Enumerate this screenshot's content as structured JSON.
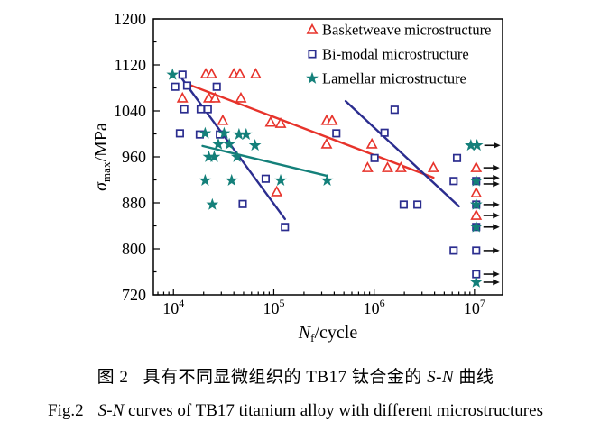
{
  "figure": {
    "caption_cn": {
      "fig_label": "图 2",
      "text_pre": "具有不同显微组织的 TB17 钛合金的 ",
      "text_italic": "S-N",
      "text_post": " 曲线"
    },
    "caption_en": {
      "fig_label": "Fig.2",
      "text_italic": "S-N",
      "text_post": " curves of TB17 titanium alloy with different microstructures"
    }
  },
  "chart_data": {
    "type": "scatter",
    "x_scale": "log",
    "grid": false,
    "legend_position": "top-right-inside",
    "xlabel": {
      "italic": "N",
      "sub": "f",
      "rest": "/cycle"
    },
    "ylabel": {
      "italic": "σ",
      "sub": "max",
      "rest": "/MPa"
    },
    "x_log_range": [
      3.8,
      7.28
    ],
    "y_range": [
      720,
      1200
    ],
    "x_major_tick_exponents": [
      4,
      5,
      6,
      7
    ],
    "y_major_ticks": [
      720,
      800,
      880,
      960,
      1040,
      1120,
      1200
    ],
    "y_minor_ticks": [
      760,
      840,
      920,
      1000,
      1080,
      1160
    ],
    "colors": {
      "basketweave": "#e7332b",
      "bimodal": "#2b2d8f",
      "lamellar": "#14807a",
      "arrow": "#111111",
      "axis": "#000000"
    },
    "series": [
      {
        "name": "Basketweave microstructure",
        "marker": "triangle",
        "color_key": "basketweave",
        "points": [
          [
            21000,
            1104,
            0
          ],
          [
            24000,
            1104,
            0
          ],
          [
            40000,
            1104,
            0
          ],
          [
            46000,
            1104,
            0
          ],
          [
            66000,
            1104,
            0
          ],
          [
            12300,
            1062,
            0
          ],
          [
            22500,
            1062,
            0
          ],
          [
            26000,
            1062,
            0
          ],
          [
            47000,
            1062,
            0
          ],
          [
            31000,
            1023,
            0
          ],
          [
            93000,
            1020,
            0
          ],
          [
            117000,
            1018,
            0
          ],
          [
            336000,
            1023,
            0
          ],
          [
            381000,
            1023,
            0
          ],
          [
            336000,
            982,
            0
          ],
          [
            950000,
            982,
            0
          ],
          [
            107000,
            899,
            0
          ],
          [
            860000,
            941,
            0
          ],
          [
            1360000,
            941,
            0
          ],
          [
            1850000,
            941,
            0
          ],
          [
            3900000,
            941,
            0
          ],
          [
            10400000,
            941,
            1
          ],
          [
            10400000,
            897,
            0
          ],
          [
            10400000,
            858,
            1
          ]
        ],
        "trend_lines": [
          [
            13600,
            1087,
            3900000,
            924
          ]
        ]
      },
      {
        "name": "Bi-modal microstructure",
        "marker": "square",
        "color_key": "bimodal",
        "points": [
          [
            12300,
            1103,
            0
          ],
          [
            10400,
            1082,
            0
          ],
          [
            13700,
            1084,
            0
          ],
          [
            27000,
            1082,
            0
          ],
          [
            12800,
            1043,
            0
          ],
          [
            18700,
            1043,
            0
          ],
          [
            22000,
            1043,
            0
          ],
          [
            11600,
            1001,
            0
          ],
          [
            18300,
            999,
            0
          ],
          [
            29000,
            999,
            0
          ],
          [
            420000,
            1001,
            0
          ],
          [
            1270000,
            1002,
            0
          ],
          [
            1600000,
            1042,
            0
          ],
          [
            1010000,
            958,
            0
          ],
          [
            6700000,
            958,
            0
          ],
          [
            83000,
            922,
            0
          ],
          [
            6200000,
            918,
            0
          ],
          [
            49000,
            878,
            0
          ],
          [
            1970000,
            877,
            0
          ],
          [
            2700000,
            877,
            0
          ],
          [
            129000,
            838,
            0
          ],
          [
            6200000,
            797,
            0
          ],
          [
            10400000,
            918,
            2
          ],
          [
            10400000,
            877,
            1
          ],
          [
            10400000,
            838,
            1
          ],
          [
            10400000,
            797,
            1
          ],
          [
            10400000,
            756,
            1
          ]
        ],
        "trend_lines": [
          [
            11600,
            1101,
            129000,
            852
          ],
          [
            520000,
            1057,
            7000000,
            874
          ]
        ]
      },
      {
        "name": "Lamellar microstructure",
        "marker": "star",
        "color_key": "lamellar",
        "points": [
          [
            9800,
            1103,
            0
          ],
          [
            20700,
            1001,
            0
          ],
          [
            32000,
            1001,
            0
          ],
          [
            45000,
            999,
            0
          ],
          [
            53000,
            999,
            0
          ],
          [
            28000,
            982,
            0
          ],
          [
            36000,
            982,
            0
          ],
          [
            65000,
            980,
            0
          ],
          [
            22500,
            960,
            0
          ],
          [
            25500,
            960,
            0
          ],
          [
            43000,
            960,
            0
          ],
          [
            20700,
            919,
            0
          ],
          [
            38000,
            919,
            0
          ],
          [
            117000,
            919,
            0
          ],
          [
            340000,
            919,
            0
          ],
          [
            24400,
            877,
            0
          ],
          [
            9200000,
            980,
            0
          ],
          [
            10600000,
            980,
            1
          ],
          [
            10400000,
            918,
            0
          ],
          [
            10400000,
            877,
            0
          ],
          [
            10400000,
            838,
            0
          ],
          [
            10400000,
            742,
            1
          ]
        ],
        "trend_lines": [
          [
            19500,
            979,
            340000,
            927
          ]
        ]
      }
    ]
  }
}
